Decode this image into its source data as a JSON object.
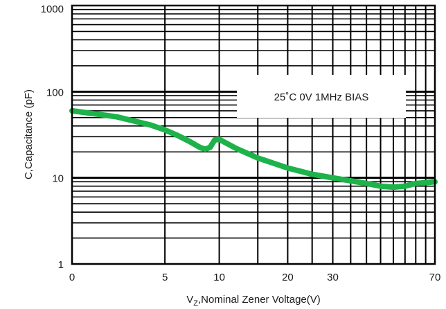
{
  "chart_data": {
    "type": "line",
    "x_scale": "log-shifted",
    "y_scale": "log",
    "xlim": [
      0,
      70
    ],
    "ylim": [
      1,
      1000
    ],
    "x_ticks": [
      0,
      5,
      10,
      20,
      30,
      70
    ],
    "x_tick_labels": [
      "0",
      "5",
      "10",
      "20",
      "30",
      "70"
    ],
    "y_ticks": [
      1,
      10,
      100,
      1000
    ],
    "y_tick_labels": [
      "1",
      "10",
      "100",
      "1000"
    ],
    "ylabel": "C,Capacitance (pF)",
    "xlabel": {
      "prefix": "V",
      "sub": "Z",
      "rest": ",Nominal Zener Voltage(V)"
    },
    "annotation": "25˚C 0V 1MHz BIAS",
    "grid": true,
    "line_color": "#1db34a",
    "series": [
      {
        "x": [
          0,
          2,
          4,
          5,
          6,
          7,
          8,
          8.5,
          9,
          9.5,
          10,
          12,
          15,
          20,
          25,
          30,
          40,
          45,
          50,
          55,
          60,
          70
        ],
        "y": [
          60,
          51,
          41,
          36,
          31,
          26.5,
          22.5,
          21.5,
          22.5,
          27.5,
          28,
          22,
          17,
          13,
          11,
          10,
          8.6,
          8,
          7.8,
          8,
          8.6,
          9
        ]
      }
    ]
  }
}
